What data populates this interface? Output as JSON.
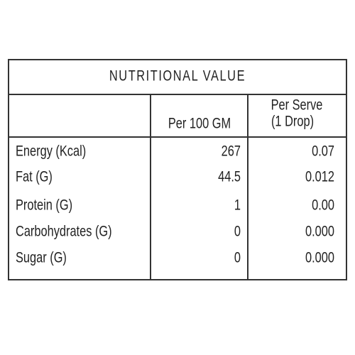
{
  "table": {
    "title": "NUTRITIONAL VALUE",
    "header": {
      "per_100": "Per 100 GM",
      "per_serve": [
        "Per Serve",
        "(1 Drop)"
      ]
    },
    "rows": [
      [
        "Energy (Kcal)",
        "267",
        "0.07"
      ],
      [
        "Fat (G)",
        "44.5",
        "0.012"
      ],
      [
        "Protein (G)",
        "1",
        "0.00"
      ],
      [
        "Carbohydrates (G)",
        "0",
        "0.000"
      ],
      [
        "Sugar (G)",
        "0",
        "0.000"
      ]
    ]
  }
}
